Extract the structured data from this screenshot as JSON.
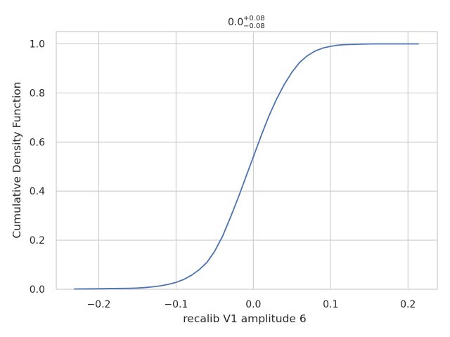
{
  "chart_data": {
    "type": "line",
    "title": {
      "value": "0.0",
      "sup": "+0.08",
      "sub": "−0.08"
    },
    "xlabel": "recalib V1 amplitude 6",
    "ylabel": "Cumulative Density Function",
    "xlim": [
      -0.255,
      0.238
    ],
    "ylim": [
      0,
      1.05
    ],
    "xticks": [
      -0.2,
      -0.1,
      0.0,
      0.1,
      0.2
    ],
    "xtick_labels": [
      "−0.2",
      "−0.1",
      "0.0",
      "0.1",
      "0.2"
    ],
    "yticks": [
      0.0,
      0.2,
      0.4,
      0.6,
      0.8,
      1.0
    ],
    "ytick_labels": [
      "0.0",
      "0.2",
      "0.4",
      "0.6",
      "0.8",
      "1.0"
    ],
    "grid": true,
    "line_color": "#4c72b0",
    "grid_color": "#cccccc",
    "series": [
      {
        "x": [
          -0.232,
          -0.2,
          -0.18,
          -0.16,
          -0.15,
          -0.14,
          -0.13,
          -0.12,
          -0.11,
          -0.1,
          -0.09,
          -0.08,
          -0.07,
          -0.06,
          -0.05,
          -0.04,
          -0.03,
          -0.02,
          -0.01,
          0.0,
          0.01,
          0.02,
          0.03,
          0.04,
          0.05,
          0.06,
          0.07,
          0.08,
          0.09,
          0.1,
          0.11,
          0.12,
          0.13,
          0.14,
          0.15,
          0.16,
          0.18,
          0.2,
          0.214
        ],
        "y": [
          0.001,
          0.002,
          0.003,
          0.004,
          0.005,
          0.007,
          0.01,
          0.014,
          0.02,
          0.028,
          0.04,
          0.057,
          0.08,
          0.11,
          0.155,
          0.215,
          0.29,
          0.37,
          0.455,
          0.54,
          0.625,
          0.705,
          0.775,
          0.835,
          0.885,
          0.925,
          0.952,
          0.971,
          0.983,
          0.99,
          0.995,
          0.997,
          0.998,
          0.999,
          0.9995,
          1.0,
          1.0,
          1.0,
          1.0
        ]
      }
    ]
  }
}
